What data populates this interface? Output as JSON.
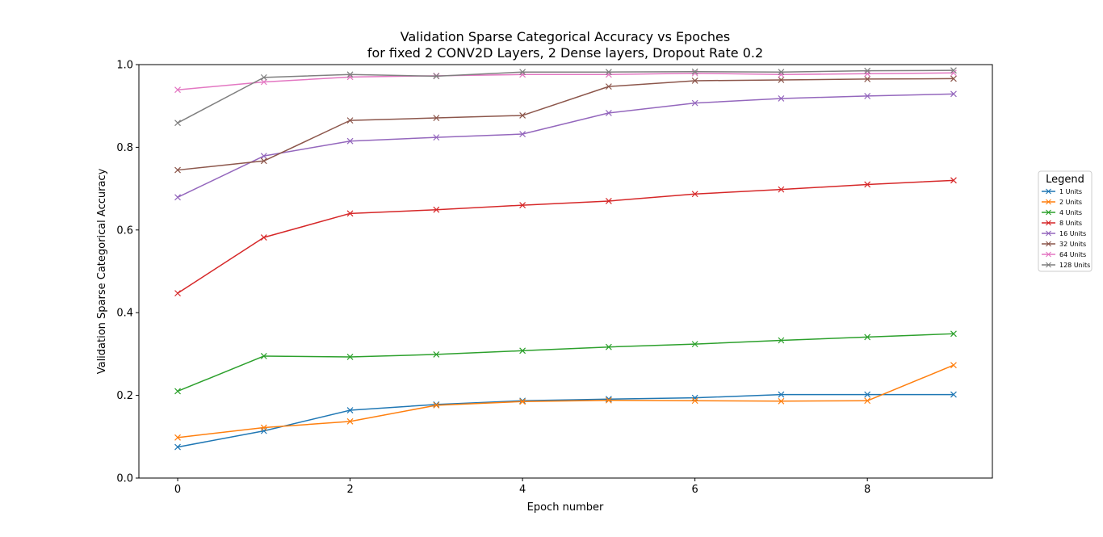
{
  "chart_data": {
    "type": "line",
    "title": "Validation Sparse Categorical Accuracy vs Epoches",
    "subtitle": "for fixed 2 CONV2D Layers, 2 Dense layers, Dropout Rate 0.2",
    "xlabel": "Epoch number",
    "ylabel": "Validation Sparse Categorical Accuracy",
    "xlim": [
      -0.45,
      9.45
    ],
    "ylim": [
      0.0,
      1.0
    ],
    "xticks": [
      0,
      2,
      4,
      6,
      8
    ],
    "yticks": [
      0.0,
      0.2,
      0.4,
      0.6,
      0.8,
      1.0
    ],
    "ytick_labels": [
      "0.0",
      "0.2",
      "0.4",
      "0.6",
      "0.8",
      "1.0"
    ],
    "grid": false,
    "marker": "x",
    "legend": {
      "title": "Legend",
      "placement": "outside-right"
    },
    "x": [
      0,
      1,
      2,
      3,
      4,
      5,
      6,
      7,
      8,
      9
    ],
    "series": [
      {
        "name": "1 Units",
        "color": "#1f77b4",
        "values": [
          0.075,
          0.114,
          0.164,
          0.178,
          0.187,
          0.191,
          0.194,
          0.202,
          0.202,
          0.202
        ]
      },
      {
        "name": "2 Units",
        "color": "#ff7f0e",
        "values": [
          0.098,
          0.122,
          0.137,
          0.176,
          0.185,
          0.188,
          0.187,
          0.186,
          0.187,
          0.273
        ]
      },
      {
        "name": "4 Units",
        "color": "#2ca02c",
        "values": [
          0.21,
          0.295,
          0.293,
          0.299,
          0.308,
          0.317,
          0.324,
          0.333,
          0.341,
          0.349
        ]
      },
      {
        "name": "8 Units",
        "color": "#d62728",
        "values": [
          0.447,
          0.582,
          0.64,
          0.649,
          0.66,
          0.67,
          0.687,
          0.698,
          0.71,
          0.72
        ]
      },
      {
        "name": "16 Units",
        "color": "#9467bd",
        "values": [
          0.679,
          0.779,
          0.815,
          0.824,
          0.832,
          0.883,
          0.907,
          0.918,
          0.924,
          0.929
        ]
      },
      {
        "name": "32 Units",
        "color": "#8c564b",
        "values": [
          0.745,
          0.767,
          0.865,
          0.871,
          0.877,
          0.947,
          0.961,
          0.963,
          0.965,
          0.966
        ]
      },
      {
        "name": "64 Units",
        "color": "#e377c2",
        "values": [
          0.939,
          0.958,
          0.97,
          0.973,
          0.976,
          0.976,
          0.979,
          0.976,
          0.978,
          0.98
        ]
      },
      {
        "name": "128 Units",
        "color": "#7f7f7f",
        "values": [
          0.859,
          0.969,
          0.976,
          0.972,
          0.982,
          0.982,
          0.983,
          0.982,
          0.985,
          0.986
        ]
      }
    ]
  }
}
